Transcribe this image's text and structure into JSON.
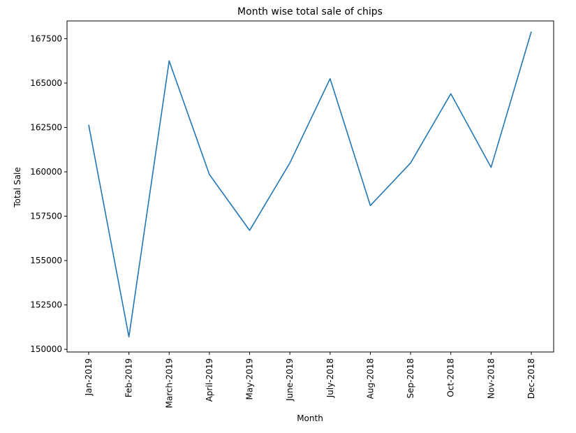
{
  "chart_data": {
    "type": "line",
    "title": "Month wise total sale of chips",
    "xlabel": "Month",
    "ylabel": "Total Sale",
    "categories": [
      "Jan-2019",
      "Feb-2019",
      "March-2019",
      "April-2019",
      "May-2019",
      "June-2019",
      "July-2018",
      "Aug-2018",
      "Sep-2018",
      "Oct-2018",
      "Nov-2018",
      "Dec-2018"
    ],
    "series": [
      {
        "values": [
          162650,
          150700,
          166250,
          159850,
          156700,
          160500,
          165250,
          158100,
          160500,
          164400,
          160250,
          167900
        ],
        "color": "#1f77b4"
      }
    ],
    "yticks": [
      150000,
      152500,
      155000,
      157500,
      160000,
      162500,
      165000,
      167500
    ],
    "ylim": [
      149850,
      168500
    ],
    "grid": false
  }
}
